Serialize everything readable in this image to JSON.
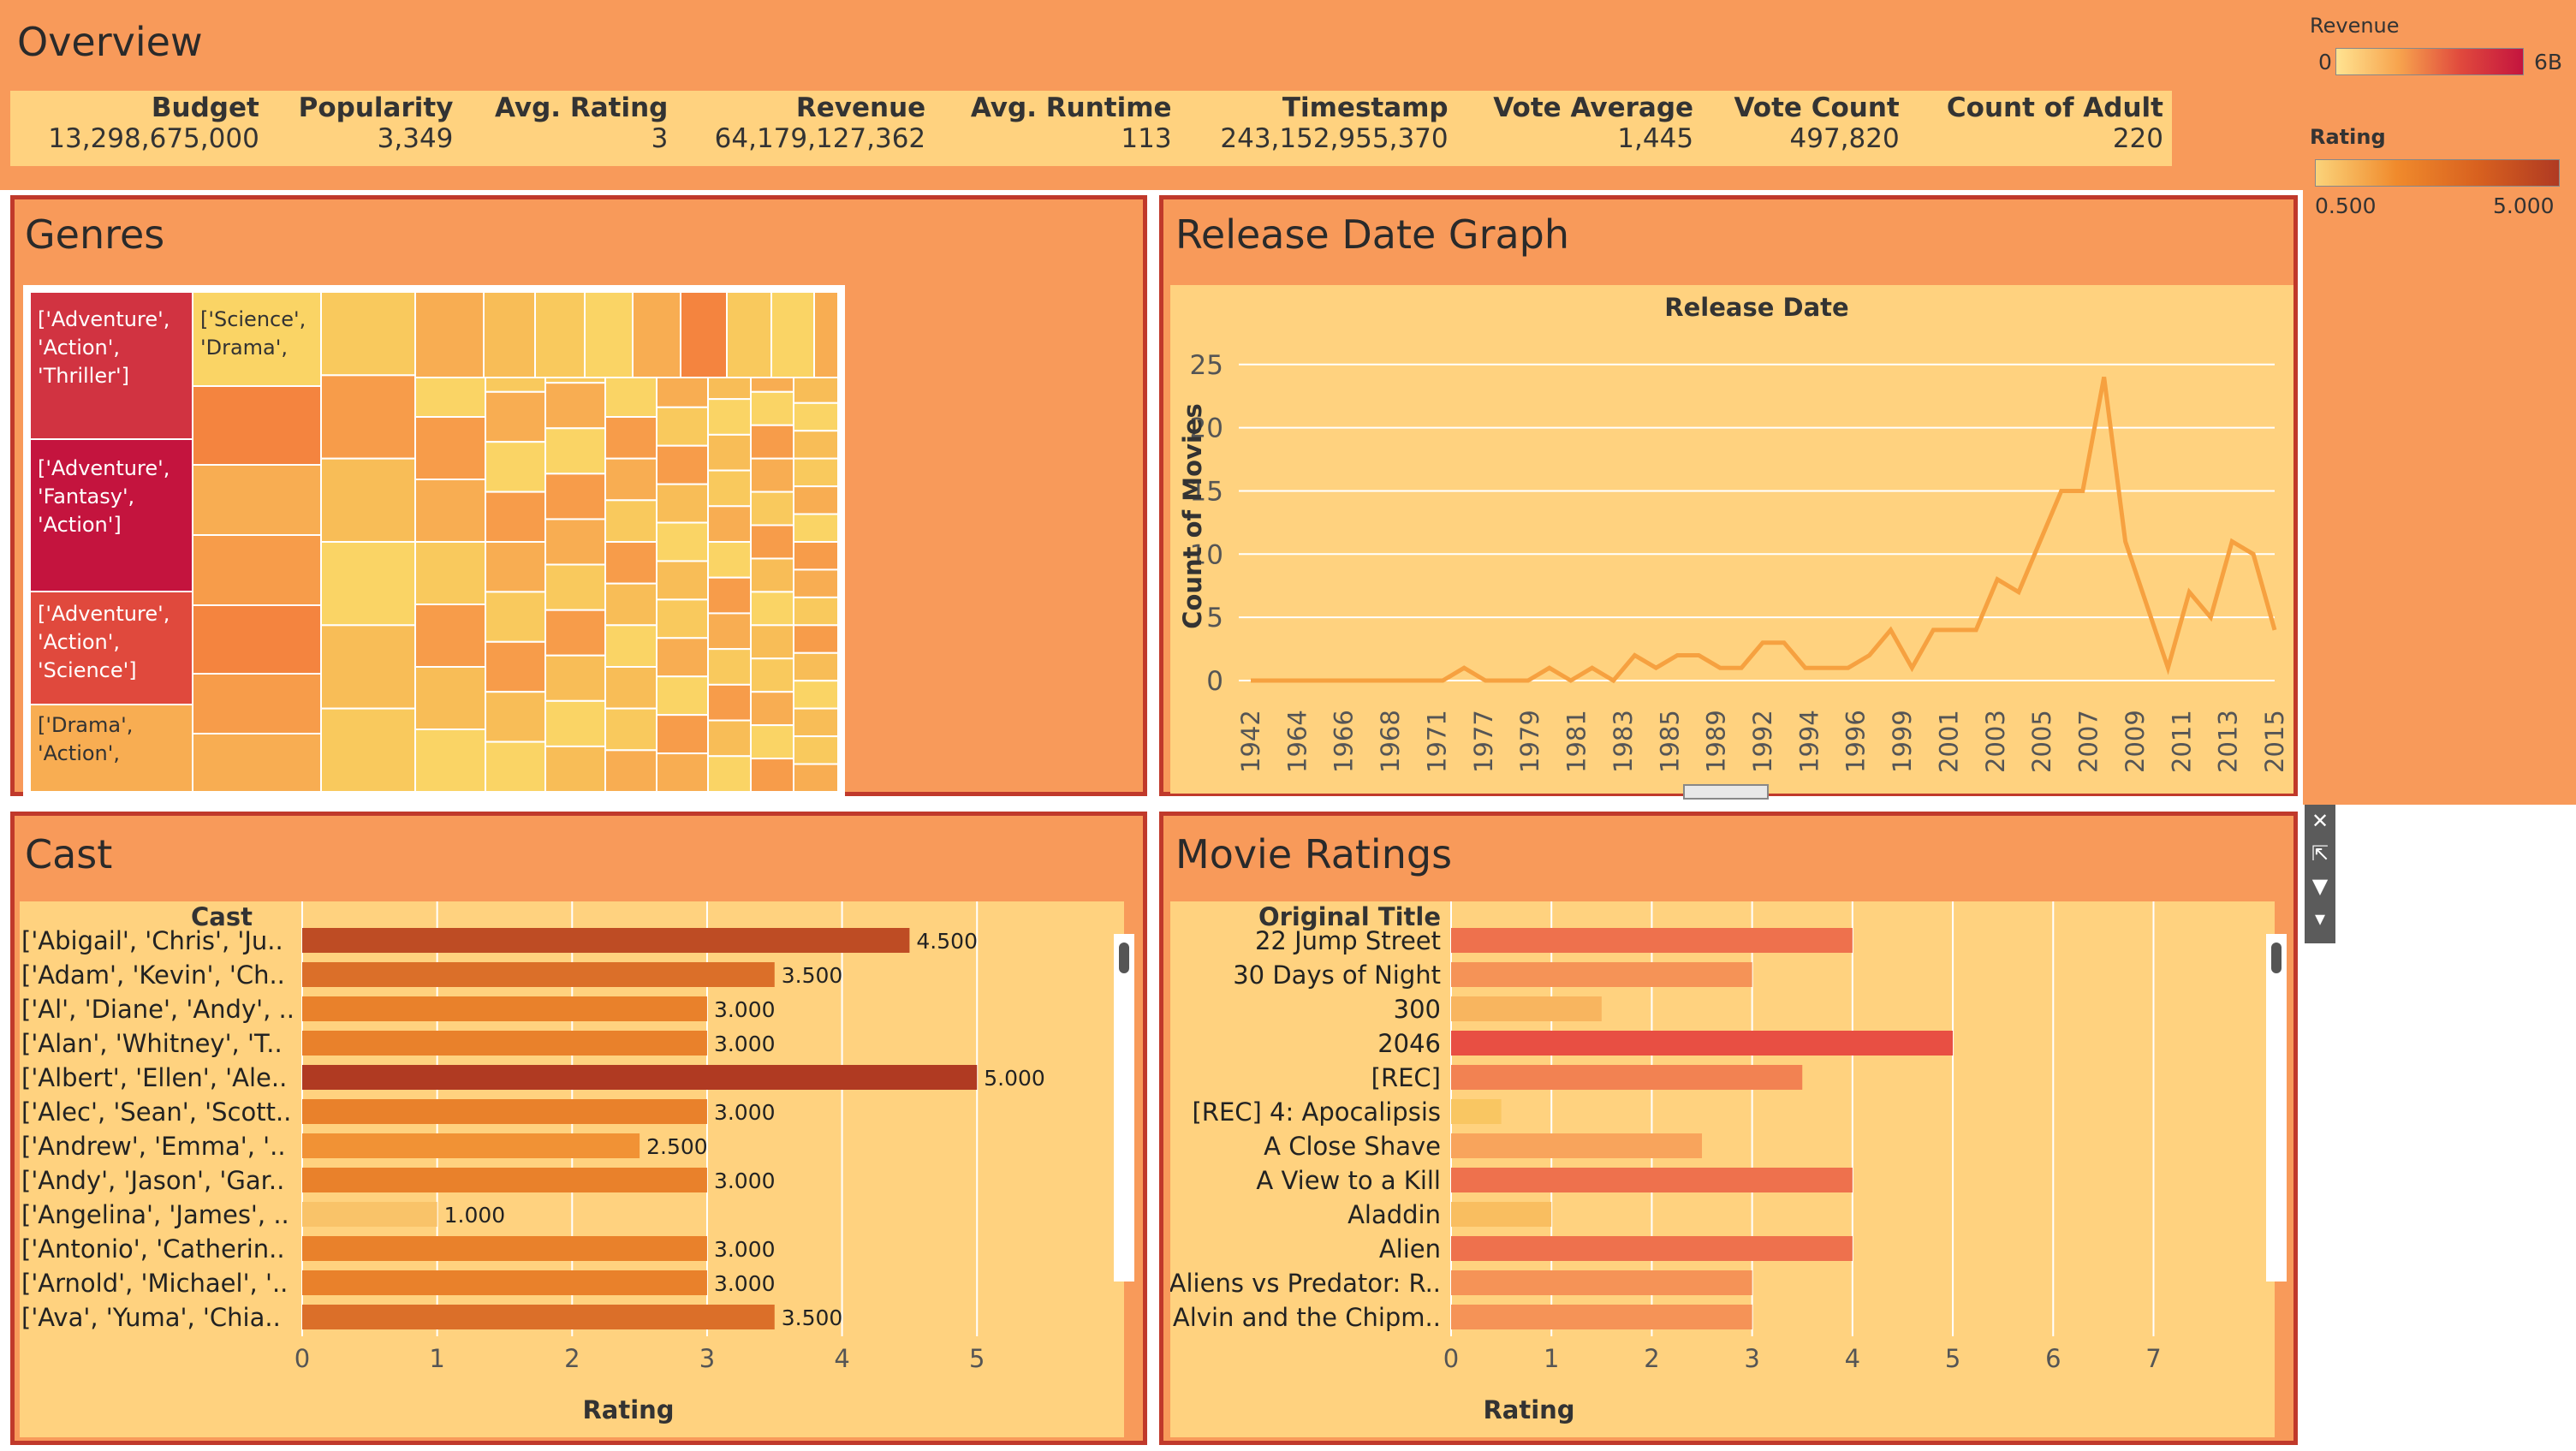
{
  "colors": {
    "page_bg": "#f89a5a",
    "view_bg": "#ffd27f",
    "pane_border": "#c0392b",
    "line": "#f6a140",
    "revenue_low": "#ffd67e",
    "revenue_high": "#c4143e",
    "rating_low": "#fbd37a",
    "rating_high": "#b03a22"
  },
  "overview": {
    "title": "Overview",
    "headers": [
      "Budget",
      "Popularity",
      "Avg. Rating",
      "Revenue",
      "Avg. Runtime",
      "Timestamp",
      "Vote Average",
      "Vote Count",
      "Count of Adult"
    ],
    "values": [
      "13,298,675,000",
      "3,349",
      "3",
      "64,179,127,362",
      "113",
      "243,152,955,370",
      "1,445",
      "497,820",
      "220"
    ]
  },
  "legends": {
    "revenue": {
      "title": "Revenue",
      "min": "0",
      "max": "6B"
    },
    "rating": {
      "title": "Rating",
      "min": "0.500",
      "max": "5.000"
    }
  },
  "genres": {
    "title": "Genres",
    "labels": [
      "['Adventure', 'Action', 'Thriller']",
      "['Adventure', 'Fantasy', 'Action']",
      "['Adventure', 'Action', 'Science']",
      "['Drama', 'Action',",
      "['Science', 'Drama',"
    ]
  },
  "release": {
    "title": "Release Date Graph",
    "chart_data": {
      "type": "line",
      "title": "Release Date",
      "xlabel": "",
      "ylabel": "Count of Movies",
      "x_ticks": [
        "1942",
        "1964",
        "1966",
        "1968",
        "1971",
        "1977",
        "1979",
        "1981",
        "1983",
        "1985",
        "1989",
        "1992",
        "1994",
        "1996",
        "1999",
        "2001",
        "2003",
        "2005",
        "2007",
        "2009",
        "2011",
        "2013",
        "2015"
      ],
      "y_ticks": [
        0,
        5,
        10,
        15,
        20,
        25
      ],
      "ylim": [
        0,
        26
      ],
      "values": [
        0,
        0,
        0,
        0,
        0,
        0,
        0,
        0,
        0,
        0,
        1,
        0,
        0,
        0,
        1,
        0,
        1,
        0,
        2,
        1,
        2,
        2,
        1,
        1,
        3,
        3,
        1,
        1,
        1,
        2,
        4,
        1,
        4,
        4,
        4,
        8,
        7,
        11,
        15,
        15,
        24,
        11,
        6,
        1,
        7,
        5,
        11,
        10,
        4
      ]
    }
  },
  "cast": {
    "title": "Cast",
    "col_header": "Cast",
    "chart_data": {
      "type": "bar",
      "orientation": "horizontal",
      "categories": [
        "['Abigail', 'Chris', 'Ju..",
        "['Adam', 'Kevin', 'Ch..",
        "['Al', 'Diane', 'Andy', ..",
        "['Alan', 'Whitney', 'T..",
        "['Albert', 'Ellen', 'Ale..",
        "['Alec', 'Sean', 'Scott..",
        "['Andrew', 'Emma', '..",
        "['Andy', 'Jason', 'Gar..",
        "['Angelina', 'James', ..",
        "['Antonio', 'Catherin..",
        "['Arnold', 'Michael', '..",
        "['Ava', 'Yuma', 'Chia.."
      ],
      "values": [
        4.5,
        3.5,
        3.0,
        3.0,
        5.0,
        3.0,
        2.5,
        3.0,
        1.0,
        3.0,
        3.0,
        3.5
      ],
      "labels": [
        "4.500",
        "3.500",
        "3.000",
        "3.000",
        "5.000",
        "3.000",
        "2.500",
        "3.000",
        "1.000",
        "3.000",
        "3.000",
        "3.500"
      ],
      "xlabel": "Rating",
      "x_ticks": [
        "0",
        "1",
        "2",
        "3",
        "4",
        "5"
      ],
      "xlim": [
        0,
        5.95
      ]
    }
  },
  "ratings": {
    "title": "Movie Ratings",
    "col_header": "Original Title",
    "chart_data": {
      "type": "bar",
      "orientation": "horizontal",
      "categories": [
        "22 Jump Street",
        "30 Days of Night",
        "300",
        "2046",
        "[REC]",
        "[REC] 4: Apocalipsis",
        "A Close Shave",
        "A View to a Kill",
        "Aladdin",
        "Alien",
        "Aliens vs Predator: R..",
        "Alvin and the Chipm.."
      ],
      "values": [
        4,
        3,
        1.5,
        5,
        3.5,
        0.5,
        2.5,
        4,
        1,
        4,
        3,
        3
      ],
      "xlabel": "Rating",
      "x_ticks": [
        "0",
        "1",
        "2",
        "3",
        "4",
        "5",
        "6",
        "7"
      ],
      "xlim": [
        0,
        7.9
      ]
    }
  },
  "toolbar": {
    "close": "✕",
    "open": "⇱",
    "filter": "▼",
    "more": "▾"
  }
}
